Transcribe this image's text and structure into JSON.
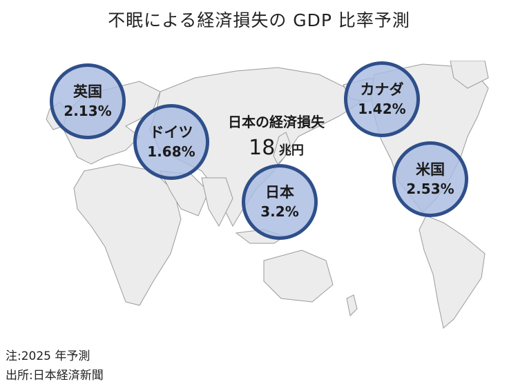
{
  "title": "不眠による経済損失の GDP 比率予測",
  "total": {
    "label": "日本の経済損失",
    "value": "18",
    "unit": "兆円"
  },
  "countries": [
    {
      "name": "英国",
      "value": "2.13%"
    },
    {
      "name": "ドイツ",
      "value": "1.68%"
    },
    {
      "name": "日本",
      "value": "3.2%"
    },
    {
      "name": "カナダ",
      "value": "1.42%"
    },
    {
      "name": "米国",
      "value": "2.53%"
    }
  ],
  "notes": {
    "note": "注:2025 年予測",
    "source": "出所:日本経済新聞"
  },
  "colors": {
    "circle_fill": "#aabce2",
    "circle_border": "#2f4f8a",
    "land": "#ececec",
    "land_stroke": "#9a9a9a"
  }
}
